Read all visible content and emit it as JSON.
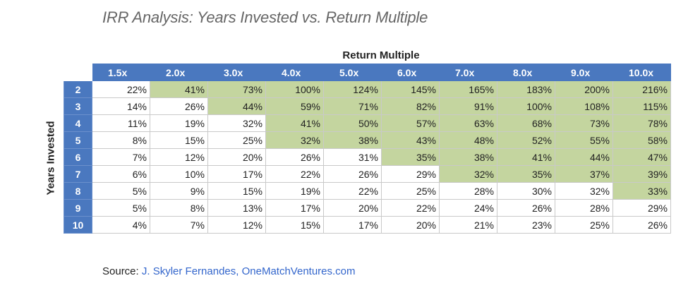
{
  "title": "IRR Analysis: Years Invested vs. Return Multiple",
  "source": {
    "label": "Source:",
    "link_text": "J. Skyler Fernandes, OneMatchVentures.com"
  },
  "colors": {
    "header_bg": "#4a78bf",
    "highlight": "#c4d59f",
    "link": "#3366cc"
  },
  "chart_data": {
    "type": "table",
    "title": "IRR Analysis: Years Invested vs. Return Multiple",
    "column_axis_label": "Return Multiple",
    "row_axis_label": "Years Invested",
    "columns": [
      "1.5x",
      "2.0x",
      "3.0x",
      "4.0x",
      "5.0x",
      "6.0x",
      "7.0x",
      "8.0x",
      "9.0x",
      "10.0x"
    ],
    "rows": [
      {
        "years": "2",
        "values": [
          "22%",
          "41%",
          "73%",
          "100%",
          "124%",
          "145%",
          "165%",
          "183%",
          "200%",
          "216%"
        ],
        "highlighted": [
          false,
          true,
          true,
          true,
          true,
          true,
          true,
          true,
          true,
          true
        ]
      },
      {
        "years": "3",
        "values": [
          "14%",
          "26%",
          "44%",
          "59%",
          "71%",
          "82%",
          "91%",
          "100%",
          "108%",
          "115%"
        ],
        "highlighted": [
          false,
          false,
          true,
          true,
          true,
          true,
          true,
          true,
          true,
          true
        ]
      },
      {
        "years": "4",
        "values": [
          "11%",
          "19%",
          "32%",
          "41%",
          "50%",
          "57%",
          "63%",
          "68%",
          "73%",
          "78%"
        ],
        "highlighted": [
          false,
          false,
          false,
          true,
          true,
          true,
          true,
          true,
          true,
          true
        ]
      },
      {
        "years": "5",
        "values": [
          "8%",
          "15%",
          "25%",
          "32%",
          "38%",
          "43%",
          "48%",
          "52%",
          "55%",
          "58%"
        ],
        "highlighted": [
          false,
          false,
          false,
          true,
          true,
          true,
          true,
          true,
          true,
          true
        ]
      },
      {
        "years": "6",
        "values": [
          "7%",
          "12%",
          "20%",
          "26%",
          "31%",
          "35%",
          "38%",
          "41%",
          "44%",
          "47%"
        ],
        "highlighted": [
          false,
          false,
          false,
          false,
          false,
          true,
          true,
          true,
          true,
          true
        ]
      },
      {
        "years": "7",
        "values": [
          "6%",
          "10%",
          "17%",
          "22%",
          "26%",
          "29%",
          "32%",
          "35%",
          "37%",
          "39%"
        ],
        "highlighted": [
          false,
          false,
          false,
          false,
          false,
          false,
          true,
          true,
          true,
          true
        ]
      },
      {
        "years": "8",
        "values": [
          "5%",
          "9%",
          "15%",
          "19%",
          "22%",
          "25%",
          "28%",
          "30%",
          "32%",
          "33%"
        ],
        "highlighted": [
          false,
          false,
          false,
          false,
          false,
          false,
          false,
          false,
          false,
          true
        ]
      },
      {
        "years": "9",
        "values": [
          "5%",
          "8%",
          "13%",
          "17%",
          "20%",
          "22%",
          "24%",
          "26%",
          "28%",
          "29%"
        ],
        "highlighted": [
          false,
          false,
          false,
          false,
          false,
          false,
          false,
          false,
          false,
          false
        ]
      },
      {
        "years": "10",
        "values": [
          "4%",
          "7%",
          "12%",
          "15%",
          "17%",
          "20%",
          "21%",
          "23%",
          "25%",
          "26%"
        ],
        "highlighted": [
          false,
          false,
          false,
          false,
          false,
          false,
          false,
          false,
          false,
          false
        ]
      }
    ]
  }
}
